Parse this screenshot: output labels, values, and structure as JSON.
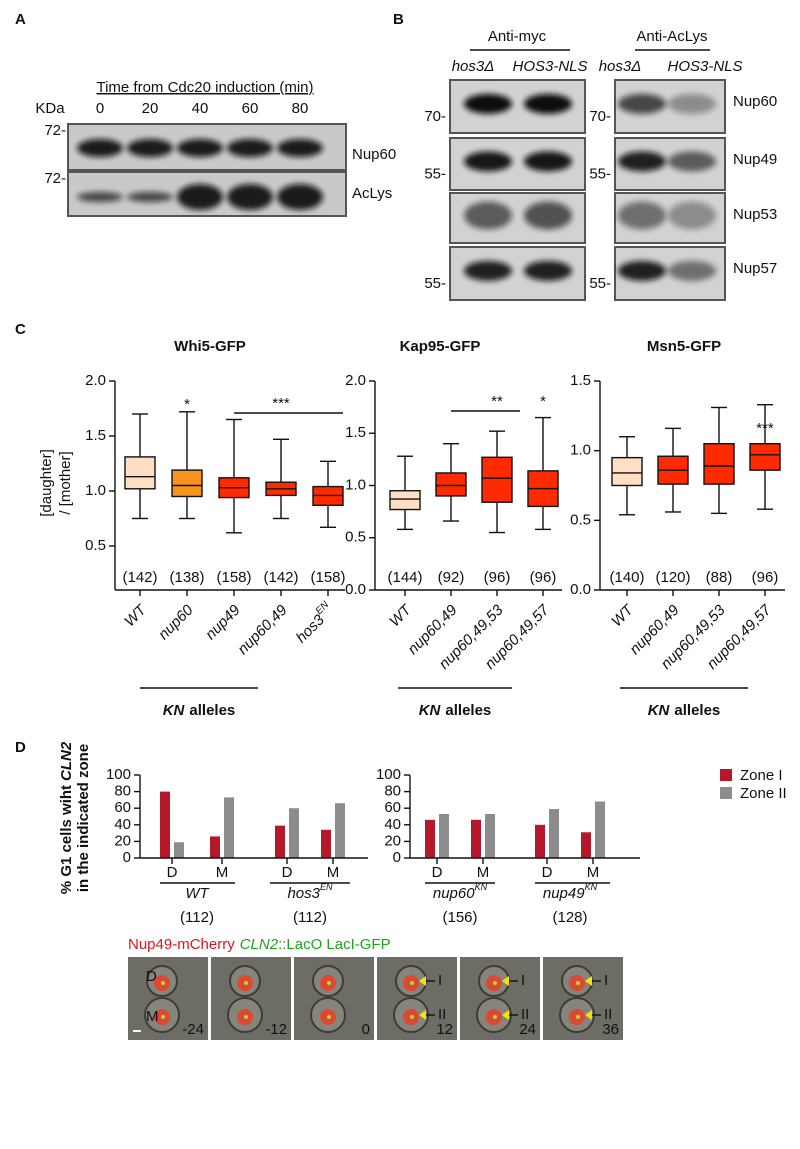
{
  "panel_a": {
    "label": "A",
    "header": "Time from Cdc20 induction (min)",
    "unit": "KDa",
    "lanes": [
      "0",
      "20",
      "40",
      "60",
      "80"
    ],
    "blots": [
      {
        "marker": "72-",
        "name": "Nup60"
      },
      {
        "marker": "72-",
        "name": "AcLys"
      }
    ]
  },
  "panel_b": {
    "label": "B",
    "antibodies": [
      "Anti-myc",
      "Anti-AcLys"
    ],
    "strains": [
      "hos3Δ",
      "HOS3-NLS"
    ],
    "blots": [
      {
        "name": "Nup60",
        "marker": "70-"
      },
      {
        "name": "Nup49",
        "marker": "55-"
      },
      {
        "name": "Nup53"
      },
      {
        "name": "Nup57",
        "marker": "55-"
      }
    ]
  },
  "panel_c": {
    "label": "C",
    "ylabel": [
      "[daughter]",
      "/ [mother]"
    ]
  },
  "panel_d": {
    "label": "D",
    "micrograph": {
      "caption": [
        "Nup49-mCherry",
        "CLN2",
        "::LacO LacI-GFP"
      ],
      "times": [
        "-24",
        "-12",
        "0",
        "12",
        "24",
        "36"
      ],
      "cells": [
        "D",
        "M"
      ],
      "zones": [
        "I",
        "II"
      ]
    }
  },
  "chart_data": [
    {
      "type": "box",
      "title": "Whi5-GFP",
      "ylim": [
        0.1,
        2.0
      ],
      "yticks": [
        0.5,
        {
          "value": 1,
          "label": "1.0"
        },
        1.5,
        {
          "value": 2,
          "label": "2.0"
        }
      ],
      "categories": [
        "WT",
        "nup60",
        "nup49",
        "nup60,49",
        "hos3"
      ],
      "category_superscripts": [
        null,
        null,
        null,
        null,
        "EN"
      ],
      "n": [
        "(142)",
        "(138)",
        "(158)",
        "(142)",
        "(158)"
      ],
      "colors": [
        "#fddfc3",
        "#f7931e",
        "#ff2a00",
        "#ff2a00",
        "#ff2a00"
      ],
      "boxes": [
        {
          "min": 0.75,
          "q1": 1.02,
          "median": 1.13,
          "q3": 1.31,
          "max": 1.7
        },
        {
          "min": 0.75,
          "q1": 0.95,
          "median": 1.05,
          "q3": 1.19,
          "max": 1.72
        },
        {
          "min": 0.62,
          "q1": 0.94,
          "median": 1.03,
          "q3": 1.12,
          "max": 1.65
        },
        {
          "min": 0.75,
          "q1": 0.96,
          "median": 1.02,
          "q3": 1.08,
          "max": 1.47
        },
        {
          "min": 0.67,
          "q1": 0.87,
          "median": 0.96,
          "q3": 1.04,
          "max": 1.27
        }
      ],
      "annotations": [
        "*",
        "***"
      ],
      "xlabel_italic": "KN",
      "xlabel": "alleles"
    },
    {
      "type": "box",
      "title": "Kap95-GFP",
      "ylim": [
        0,
        2.0
      ],
      "yticks": [
        {
          "value": 0,
          "label": "0.0"
        },
        0.5,
        {
          "value": 1,
          "label": "1.0"
        },
        1.5,
        {
          "value": 2,
          "label": "2.0"
        }
      ],
      "categories": [
        "WT",
        "nup60,49",
        "nup60,49,53",
        "nup60,49,57"
      ],
      "n": [
        "(144)",
        "(92)",
        "(96)",
        "(96)"
      ],
      "colors": [
        "#fddfc3",
        "#ff2a00",
        "#ff2a00",
        "#ff2a00"
      ],
      "boxes": [
        {
          "min": 0.58,
          "q1": 0.77,
          "median": 0.87,
          "q3": 0.95,
          "max": 1.28
        },
        {
          "min": 0.66,
          "q1": 0.9,
          "median": 1.0,
          "q3": 1.12,
          "max": 1.4
        },
        {
          "min": 0.55,
          "q1": 0.84,
          "median": 1.07,
          "q3": 1.27,
          "max": 1.52
        },
        {
          "min": 0.58,
          "q1": 0.8,
          "median": 0.97,
          "q3": 1.14,
          "max": 1.65
        }
      ],
      "annotations": [
        "**",
        "*"
      ],
      "xlabel_italic": "KN",
      "xlabel": "alleles"
    },
    {
      "type": "box",
      "title": "Msn5-GFP",
      "ylim": [
        0,
        1.5
      ],
      "yticks": [
        {
          "value": 0,
          "label": "0.0"
        },
        0.5,
        {
          "value": 1,
          "label": "1.0"
        },
        1.5
      ],
      "categories": [
        "WT",
        "nup60,49",
        "nup60,49,53",
        "nup60,49,57"
      ],
      "n": [
        "(140)",
        "(120)",
        "(88)",
        "(96)"
      ],
      "colors": [
        "#fddfc3",
        "#ff2a00",
        "#ff2a00",
        "#ff2a00"
      ],
      "boxes": [
        {
          "min": 0.54,
          "q1": 0.75,
          "median": 0.84,
          "q3": 0.95,
          "max": 1.1
        },
        {
          "min": 0.56,
          "q1": 0.76,
          "median": 0.86,
          "q3": 0.96,
          "max": 1.16
        },
        {
          "min": 0.55,
          "q1": 0.76,
          "median": 0.89,
          "q3": 1.05,
          "max": 1.31
        },
        {
          "min": 0.58,
          "q1": 0.86,
          "median": 0.97,
          "q3": 1.05,
          "max": 1.33
        }
      ],
      "annotations": [
        "***"
      ],
      "xlabel_italic": "KN",
      "xlabel": "alleles"
    },
    {
      "type": "bar",
      "ylim": [
        0,
        100
      ],
      "yticks": [
        0,
        20,
        40,
        60,
        80,
        100
      ],
      "ylabel": [
        "% G1 cells wiht",
        "CLN2",
        "in the indicated zone"
      ],
      "categories": [
        "D",
        "M",
        "D",
        "M"
      ],
      "groups": [
        {
          "name": "WT",
          "n": "(112)"
        },
        {
          "name": "hos3",
          "superscript": "EN",
          "n": "(112)"
        }
      ],
      "series": [
        {
          "name": "Zone I",
          "color": "#b5172b",
          "values": [
            80,
            26,
            39,
            34
          ]
        },
        {
          "name": "Zone II",
          "color": "#8c8c8c",
          "values": [
            19,
            73,
            60,
            66
          ]
        }
      ],
      "legend": false
    },
    {
      "type": "bar",
      "ylim": [
        0,
        100
      ],
      "yticks": [
        0,
        20,
        40,
        60,
        80,
        100
      ],
      "categories": [
        "D",
        "M",
        "D",
        "M"
      ],
      "groups": [
        {
          "name": "nup60",
          "superscript": "KN",
          "n": "(156)"
        },
        {
          "name": "nup49",
          "superscript": "KN",
          "n": "(128)"
        }
      ],
      "series": [
        {
          "name": "Zone I",
          "color": "#b5172b",
          "values": [
            46,
            46,
            40,
            31
          ]
        },
        {
          "name": "Zone II",
          "color": "#8c8c8c",
          "values": [
            53,
            53,
            59,
            68
          ]
        }
      ],
      "legend": true
    }
  ]
}
